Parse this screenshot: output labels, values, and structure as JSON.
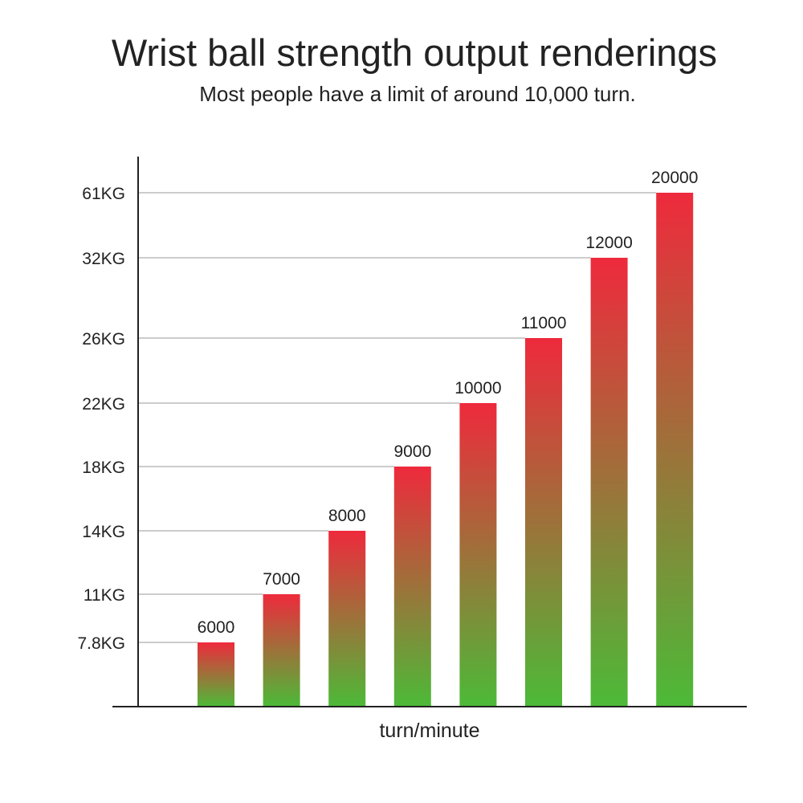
{
  "chart_data": {
    "type": "bar",
    "title": "Wrist ball strength output renderings",
    "subtitle": "Most people have a limit of around 10,000 turn.",
    "xlabel": "turn/minute",
    "ylabel": "",
    "y_scale": "non-linear (tick labels at strength levels)",
    "grid": "horizontal lines from axis to each bar",
    "y_ticks": [
      "7.8KG",
      "11KG",
      "14KG",
      "18KG",
      "22KG",
      "26KG",
      "32KG",
      "61KG"
    ],
    "bars": [
      {
        "label": "6000",
        "turns_per_minute": 6000,
        "strength_kg": 7.8
      },
      {
        "label": "7000",
        "turns_per_minute": 7000,
        "strength_kg": 11
      },
      {
        "label": "8000",
        "turns_per_minute": 8000,
        "strength_kg": 14
      },
      {
        "label": "9000",
        "turns_per_minute": 9000,
        "strength_kg": 18
      },
      {
        "label": "10000",
        "turns_per_minute": 10000,
        "strength_kg": 22
      },
      {
        "label": "11000",
        "turns_per_minute": 11000,
        "strength_kg": 26
      },
      {
        "label": "12000",
        "turns_per_minute": 12000,
        "strength_kg": 32
      },
      {
        "label": "20000",
        "turns_per_minute": 20000,
        "strength_kg": 61
      }
    ],
    "colors": {
      "gradient_top": "#ee2a3c",
      "gradient_bottom": "#4cba38",
      "axis": "#222222",
      "grid": "#999999"
    }
  }
}
